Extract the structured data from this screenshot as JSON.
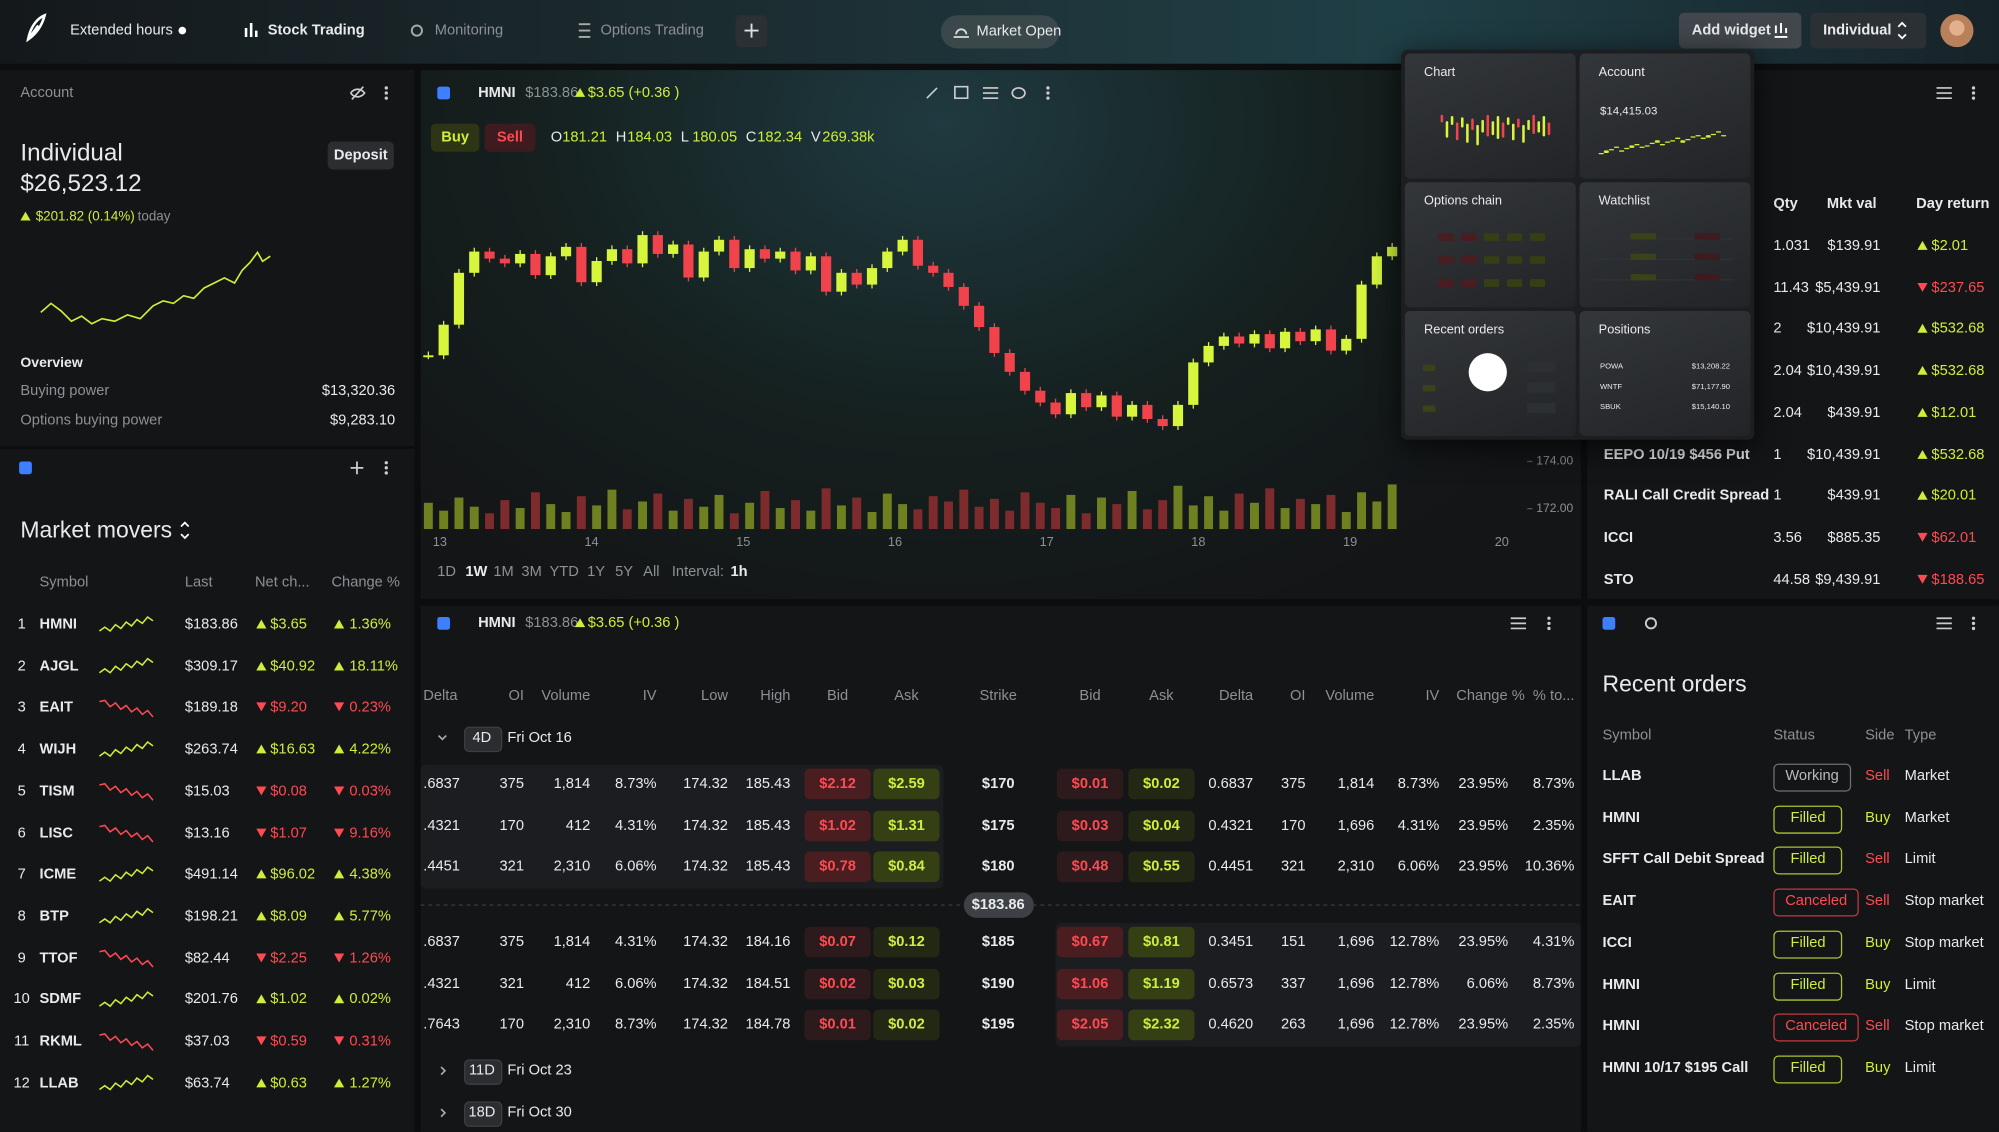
{
  "topbar": {
    "extended_hours": "Extended hours",
    "tabs": [
      "Stock Trading",
      "Monitoring",
      "Options Trading"
    ],
    "market_status": "Market Open",
    "add_widget": "Add widget",
    "account_select": "Individual"
  },
  "account": {
    "header": "Account",
    "name": "Individual",
    "balance": "$26,523.12",
    "deposit": "Deposit",
    "change": "$201.82 (0.14%)",
    "change_suffix": "today",
    "direction": "up",
    "overview": "Overview",
    "rows": [
      [
        "Buying power",
        "$13,320.36"
      ],
      [
        "Options buying power",
        "$9,283.10"
      ]
    ]
  },
  "movers": {
    "title": "Market movers",
    "columns": [
      "Symbol",
      "Last",
      "Net ch...",
      "Change %"
    ],
    "rows": [
      {
        "rank": "1",
        "symbol": "HMNI",
        "last": "$183.86",
        "net": "$3.65",
        "pct": "1.36%",
        "direction": "up"
      },
      {
        "rank": "2",
        "symbol": "AJGL",
        "last": "$309.17",
        "net": "$40.92",
        "pct": "18.11%",
        "direction": "up"
      },
      {
        "rank": "3",
        "symbol": "EAIT",
        "last": "$189.18",
        "net": "$9.20",
        "pct": "0.23%",
        "direction": "down"
      },
      {
        "rank": "4",
        "symbol": "WIJH",
        "last": "$263.74",
        "net": "$16.63",
        "pct": "4.22%",
        "direction": "up"
      },
      {
        "rank": "5",
        "symbol": "TISM",
        "last": "$15.03",
        "net": "$0.08",
        "pct": "0.03%",
        "direction": "down"
      },
      {
        "rank": "6",
        "symbol": "LISC",
        "last": "$13.16",
        "net": "$1.07",
        "pct": "9.16%",
        "direction": "down"
      },
      {
        "rank": "7",
        "symbol": "ICME",
        "last": "$491.14",
        "net": "$96.02",
        "pct": "4.38%",
        "direction": "up"
      },
      {
        "rank": "8",
        "symbol": "BTP",
        "last": "$198.21",
        "net": "$8.09",
        "pct": "5.77%",
        "direction": "up"
      },
      {
        "rank": "9",
        "symbol": "TTOF",
        "last": "$82.44",
        "net": "$2.25",
        "pct": "1.26%",
        "direction": "down"
      },
      {
        "rank": "10",
        "symbol": "SDMF",
        "last": "$201.76",
        "net": "$1.02",
        "pct": "0.02%",
        "direction": "up"
      },
      {
        "rank": "11",
        "symbol": "RKML",
        "last": "$37.03",
        "net": "$0.59",
        "pct": "0.31%",
        "direction": "down"
      },
      {
        "rank": "12",
        "symbol": "LLAB",
        "last": "$63.74",
        "net": "$0.63",
        "pct": "1.27%",
        "direction": "up"
      }
    ]
  },
  "chart": {
    "symbol": "HMNI",
    "price": "$183.86",
    "change": "$3.65 (+0.36 )",
    "direction": "up",
    "buy": "Buy",
    "sell": "Sell",
    "ohlcv": [
      [
        "O",
        "181.21"
      ],
      [
        "H",
        "184.03"
      ],
      [
        "L",
        "180.05"
      ],
      [
        "C",
        "182.34"
      ],
      [
        "V",
        "269.38k"
      ]
    ],
    "ylim": [
      171,
      187
    ],
    "yticks": [
      {
        "value": 174,
        "label": "174.00"
      },
      {
        "value": 172,
        "label": "172.00"
      }
    ],
    "days": [
      "13",
      "14",
      "15",
      "16",
      "17",
      "18",
      "19",
      "20"
    ],
    "close": [
      178.5,
      179.8,
      182.0,
      182.9,
      182.6,
      182.4,
      182.8,
      181.9,
      182.7,
      183.1,
      181.6,
      182.5,
      183.0,
      182.4,
      183.6,
      182.8,
      183.2,
      181.8,
      182.9,
      183.4,
      182.2,
      183.0,
      182.6,
      182.9,
      182.1,
      182.7,
      181.2,
      182.0,
      181.5,
      182.2,
      182.9,
      183.4,
      182.3,
      182.0,
      181.4,
      180.6,
      179.7,
      178.6,
      177.8,
      177.0,
      176.5,
      176.0,
      176.9,
      176.3,
      176.8,
      175.9,
      176.4,
      175.8,
      175.5,
      176.4,
      178.2,
      178.9,
      179.3,
      179.0,
      179.4,
      178.8,
      179.5,
      179.1,
      179.6,
      178.7,
      179.2,
      181.5,
      182.7,
      183.1
    ],
    "volume": [
      20,
      14,
      24,
      17,
      12,
      22,
      16,
      28,
      19,
      13,
      25,
      18,
      30,
      15,
      21,
      27,
      14,
      23,
      17,
      26,
      12,
      20,
      29,
      16,
      22,
      14,
      31,
      18,
      24,
      13,
      27,
      19,
      15,
      25,
      21,
      30,
      17,
      23,
      14,
      28,
      20,
      16,
      26,
      12,
      24,
      19,
      29,
      15,
      22,
      33,
      18,
      25,
      14,
      27,
      20,
      31,
      16,
      23,
      19,
      26,
      13,
      28,
      21,
      34
    ],
    "ranges": [
      "1D",
      "1W",
      "1M",
      "3M",
      "YTD",
      "1Y",
      "5Y",
      "All"
    ],
    "selected_range": "1W",
    "interval_label": "Interval:",
    "interval": "1h"
  },
  "positions": {
    "columns": [
      "Qty",
      "Mkt val",
      "Day return"
    ],
    "rows": [
      {
        "symbol": null,
        "qty": "1.031",
        "value": "$139.91",
        "ret": "$2.01",
        "direction": "up"
      },
      {
        "symbol": null,
        "qty": "11.43",
        "value": "$5,439.91",
        "ret": "$237.65",
        "direction": "down"
      },
      {
        "symbol": null,
        "qty": "2",
        "value": "$10,439.91",
        "ret": "$532.68",
        "direction": "up"
      },
      {
        "symbol": null,
        "qty": "2.04",
        "value": "$10,439.91",
        "ret": "$532.68",
        "direction": "up"
      },
      {
        "symbol": null,
        "qty": "2.04",
        "value": "$439.91",
        "ret": "$12.01",
        "direction": "up"
      },
      {
        "symbol": "EEPO 10/19 $456 Put",
        "qty": "1",
        "value": "$10,439.91",
        "ret": "$532.68",
        "direction": "up"
      },
      {
        "symbol": "RALI Call Credit Spread",
        "qty": "1",
        "value": "$439.91",
        "ret": "$20.01",
        "direction": "up"
      },
      {
        "symbol": "ICCI",
        "qty": "3.56",
        "value": "$885.35",
        "ret": "$62.01",
        "direction": "down"
      },
      {
        "symbol": "STO",
        "qty": "44.58",
        "value": "$9,439.91",
        "ret": "$188.65",
        "direction": "down"
      }
    ]
  },
  "options": {
    "symbol": "HMNI",
    "price": "$183.86",
    "change": "$3.65 (+0.36 )",
    "direction": "up",
    "columns": [
      "Delta",
      "OI",
      "Volume",
      "IV",
      "Low",
      "High",
      "Bid",
      "Ask",
      "Strike",
      "Bid",
      "Ask",
      "Delta",
      "OI",
      "Volume",
      "IV",
      "Change %",
      "% to..."
    ],
    "expirations": [
      {
        "days": "4D",
        "date": "Fri Oct 16"
      },
      {
        "days": "11D",
        "date": "Fri Oct 23"
      },
      {
        "days": "18D",
        "date": "Fri Oct 30"
      }
    ],
    "underlying": "$183.86",
    "rows": [
      [
        ".6837",
        "375",
        "1,814",
        "8.73%",
        "174.32",
        "185.43",
        "$2.12",
        "$2.59",
        "$170",
        "$0.01",
        "$0.02",
        "0.6837",
        "375",
        "1,814",
        "8.73%",
        "23.95%",
        "8.73%"
      ],
      [
        ".4321",
        "170",
        "412",
        "4.31%",
        "174.32",
        "185.43",
        "$1.02",
        "$1.31",
        "$175",
        "$0.03",
        "$0.04",
        "0.4321",
        "170",
        "1,696",
        "4.31%",
        "23.95%",
        "2.35%"
      ],
      [
        ".4451",
        "321",
        "2,310",
        "6.06%",
        "174.32",
        "185.43",
        "$0.78",
        "$0.84",
        "$180",
        "$0.48",
        "$0.55",
        "0.4451",
        "321",
        "2,310",
        "6.06%",
        "23.95%",
        "10.36%"
      ],
      [
        ".6837",
        "375",
        "1,814",
        "4.31%",
        "174.32",
        "184.16",
        "$0.07",
        "$0.12",
        "$185",
        "$0.67",
        "$0.81",
        "0.3451",
        "151",
        "1,696",
        "12.78%",
        "23.95%",
        "4.31%"
      ],
      [
        ".4321",
        "321",
        "412",
        "6.06%",
        "174.32",
        "184.51",
        "$0.02",
        "$0.03",
        "$190",
        "$1.06",
        "$1.19",
        "0.6573",
        "337",
        "1,696",
        "12.78%",
        "6.06%",
        "8.73%"
      ],
      [
        ".7643",
        "170",
        "2,310",
        "8.73%",
        "174.32",
        "184.78",
        "$0.01",
        "$0.02",
        "$195",
        "$2.05",
        "$2.32",
        "0.4620",
        "263",
        "1,696",
        "12.78%",
        "23.95%",
        "2.35%"
      ]
    ]
  },
  "orders": {
    "title": "Recent orders",
    "columns": [
      "Symbol",
      "Status",
      "Side",
      "Type"
    ],
    "rows": [
      [
        "LLAB",
        "Working",
        "Sell",
        "Market"
      ],
      [
        "HMNI",
        "Filled",
        "Buy",
        "Market"
      ],
      [
        "SFFT Call Debit Spread",
        "Filled",
        "Sell",
        "Limit"
      ],
      [
        "EAIT",
        "Canceled",
        "Sell",
        "Stop market"
      ],
      [
        "ICCI",
        "Filled",
        "Buy",
        "Stop market"
      ],
      [
        "HMNI",
        "Filled",
        "Buy",
        "Limit"
      ],
      [
        "HMNI",
        "Canceled",
        "Sell",
        "Stop market"
      ],
      [
        "HMNI 10/17 $195 Call",
        "Filled",
        "Buy",
        "Limit"
      ]
    ]
  },
  "widget_picker": {
    "tiles": [
      {
        "title": "Chart"
      },
      {
        "title": "Account",
        "value": "$14,415.03"
      },
      {
        "title": "Options chain"
      },
      {
        "title": "Watchlist"
      },
      {
        "title": "Recent orders"
      },
      {
        "title": "Positions",
        "rows": [
          [
            "POWA",
            "$13,208.22"
          ],
          [
            "WNTF",
            "$71,177.90"
          ],
          [
            "SBUK",
            "$15,140.10"
          ]
        ]
      }
    ]
  }
}
